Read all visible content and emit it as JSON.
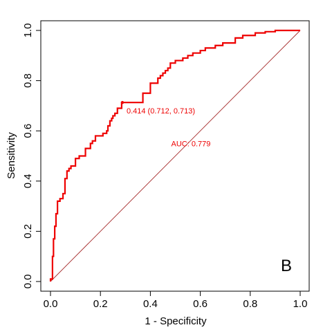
{
  "chart_data": {
    "type": "line",
    "title": "",
    "xlabel": "1 - Specificity",
    "ylabel": "Sensitivity",
    "xlim": [
      0,
      1
    ],
    "ylim": [
      0,
      1
    ],
    "xticks": [
      0.0,
      0.2,
      0.4,
      0.6,
      0.8,
      1.0
    ],
    "yticks": [
      0.0,
      0.2,
      0.4,
      0.6,
      0.8,
      1.0
    ],
    "xtick_labels": [
      "0.0",
      "0.2",
      "0.4",
      "0.6",
      "0.8",
      "1.0"
    ],
    "ytick_labels": [
      "0.0",
      "0.2",
      "0.4",
      "0.6",
      "0.8",
      "1.0"
    ],
    "grid": false,
    "legend": "none",
    "series": [
      {
        "color": "#ee0000",
        "x": [
          0,
          0,
          0.008,
          0.008,
          0.012,
          0.012,
          0.017,
          0.017,
          0.022,
          0.022,
          0.028,
          0.028,
          0.038,
          0.038,
          0.05,
          0.05,
          0.058,
          0.058,
          0.066,
          0.066,
          0.074,
          0.074,
          0.082,
          0.082,
          0.1,
          0.1,
          0.115,
          0.115,
          0.14,
          0.14,
          0.16,
          0.16,
          0.168,
          0.168,
          0.18,
          0.18,
          0.21,
          0.21,
          0.225,
          0.225,
          0.23,
          0.23,
          0.238,
          0.238,
          0.245,
          0.245,
          0.25,
          0.25,
          0.258,
          0.258,
          0.268,
          0.268,
          0.285,
          0.285,
          0.37,
          0.37,
          0.4,
          0.4,
          0.43,
          0.43,
          0.44,
          0.44,
          0.45,
          0.45,
          0.46,
          0.46,
          0.47,
          0.47,
          0.48,
          0.48,
          0.5,
          0.5,
          0.53,
          0.53,
          0.55,
          0.55,
          0.57,
          0.57,
          0.6,
          0.6,
          0.62,
          0.62,
          0.66,
          0.66,
          0.69,
          0.69,
          0.74,
          0.74,
          0.77,
          0.77,
          0.82,
          0.82,
          0.86,
          0.86,
          0.9,
          0.9,
          1.0
        ],
        "y": [
          0,
          0.01,
          0.01,
          0.1,
          0.1,
          0.17,
          0.17,
          0.22,
          0.22,
          0.27,
          0.27,
          0.32,
          0.32,
          0.33,
          0.33,
          0.35,
          0.35,
          0.41,
          0.41,
          0.44,
          0.44,
          0.45,
          0.45,
          0.46,
          0.46,
          0.49,
          0.49,
          0.5,
          0.5,
          0.53,
          0.53,
          0.55,
          0.55,
          0.56,
          0.56,
          0.58,
          0.58,
          0.59,
          0.59,
          0.6,
          0.6,
          0.62,
          0.62,
          0.64,
          0.64,
          0.65,
          0.65,
          0.66,
          0.66,
          0.67,
          0.67,
          0.69,
          0.69,
          0.713,
          0.713,
          0.75,
          0.75,
          0.79,
          0.79,
          0.81,
          0.81,
          0.82,
          0.82,
          0.83,
          0.83,
          0.84,
          0.84,
          0.85,
          0.85,
          0.87,
          0.87,
          0.88,
          0.88,
          0.89,
          0.89,
          0.9,
          0.9,
          0.91,
          0.91,
          0.92,
          0.92,
          0.93,
          0.93,
          0.94,
          0.94,
          0.95,
          0.95,
          0.97,
          0.97,
          0.98,
          0.98,
          0.99,
          0.99,
          0.995,
          0.995,
          1.0,
          1.0
        ]
      }
    ],
    "reference_line": {
      "from": [
        0,
        0
      ],
      "to": [
        1,
        1
      ],
      "color": "#a52a2a"
    },
    "annotations": [
      {
        "text": "0.414 (0.712, 0.713)",
        "x": 0.288,
        "y": 0.713,
        "color": "#ee0000",
        "marker": true
      },
      {
        "text": "AUC: 0.779",
        "x": 0.5,
        "y": 0.5,
        "color": "#ee0000"
      }
    ],
    "panel_label": "B"
  }
}
